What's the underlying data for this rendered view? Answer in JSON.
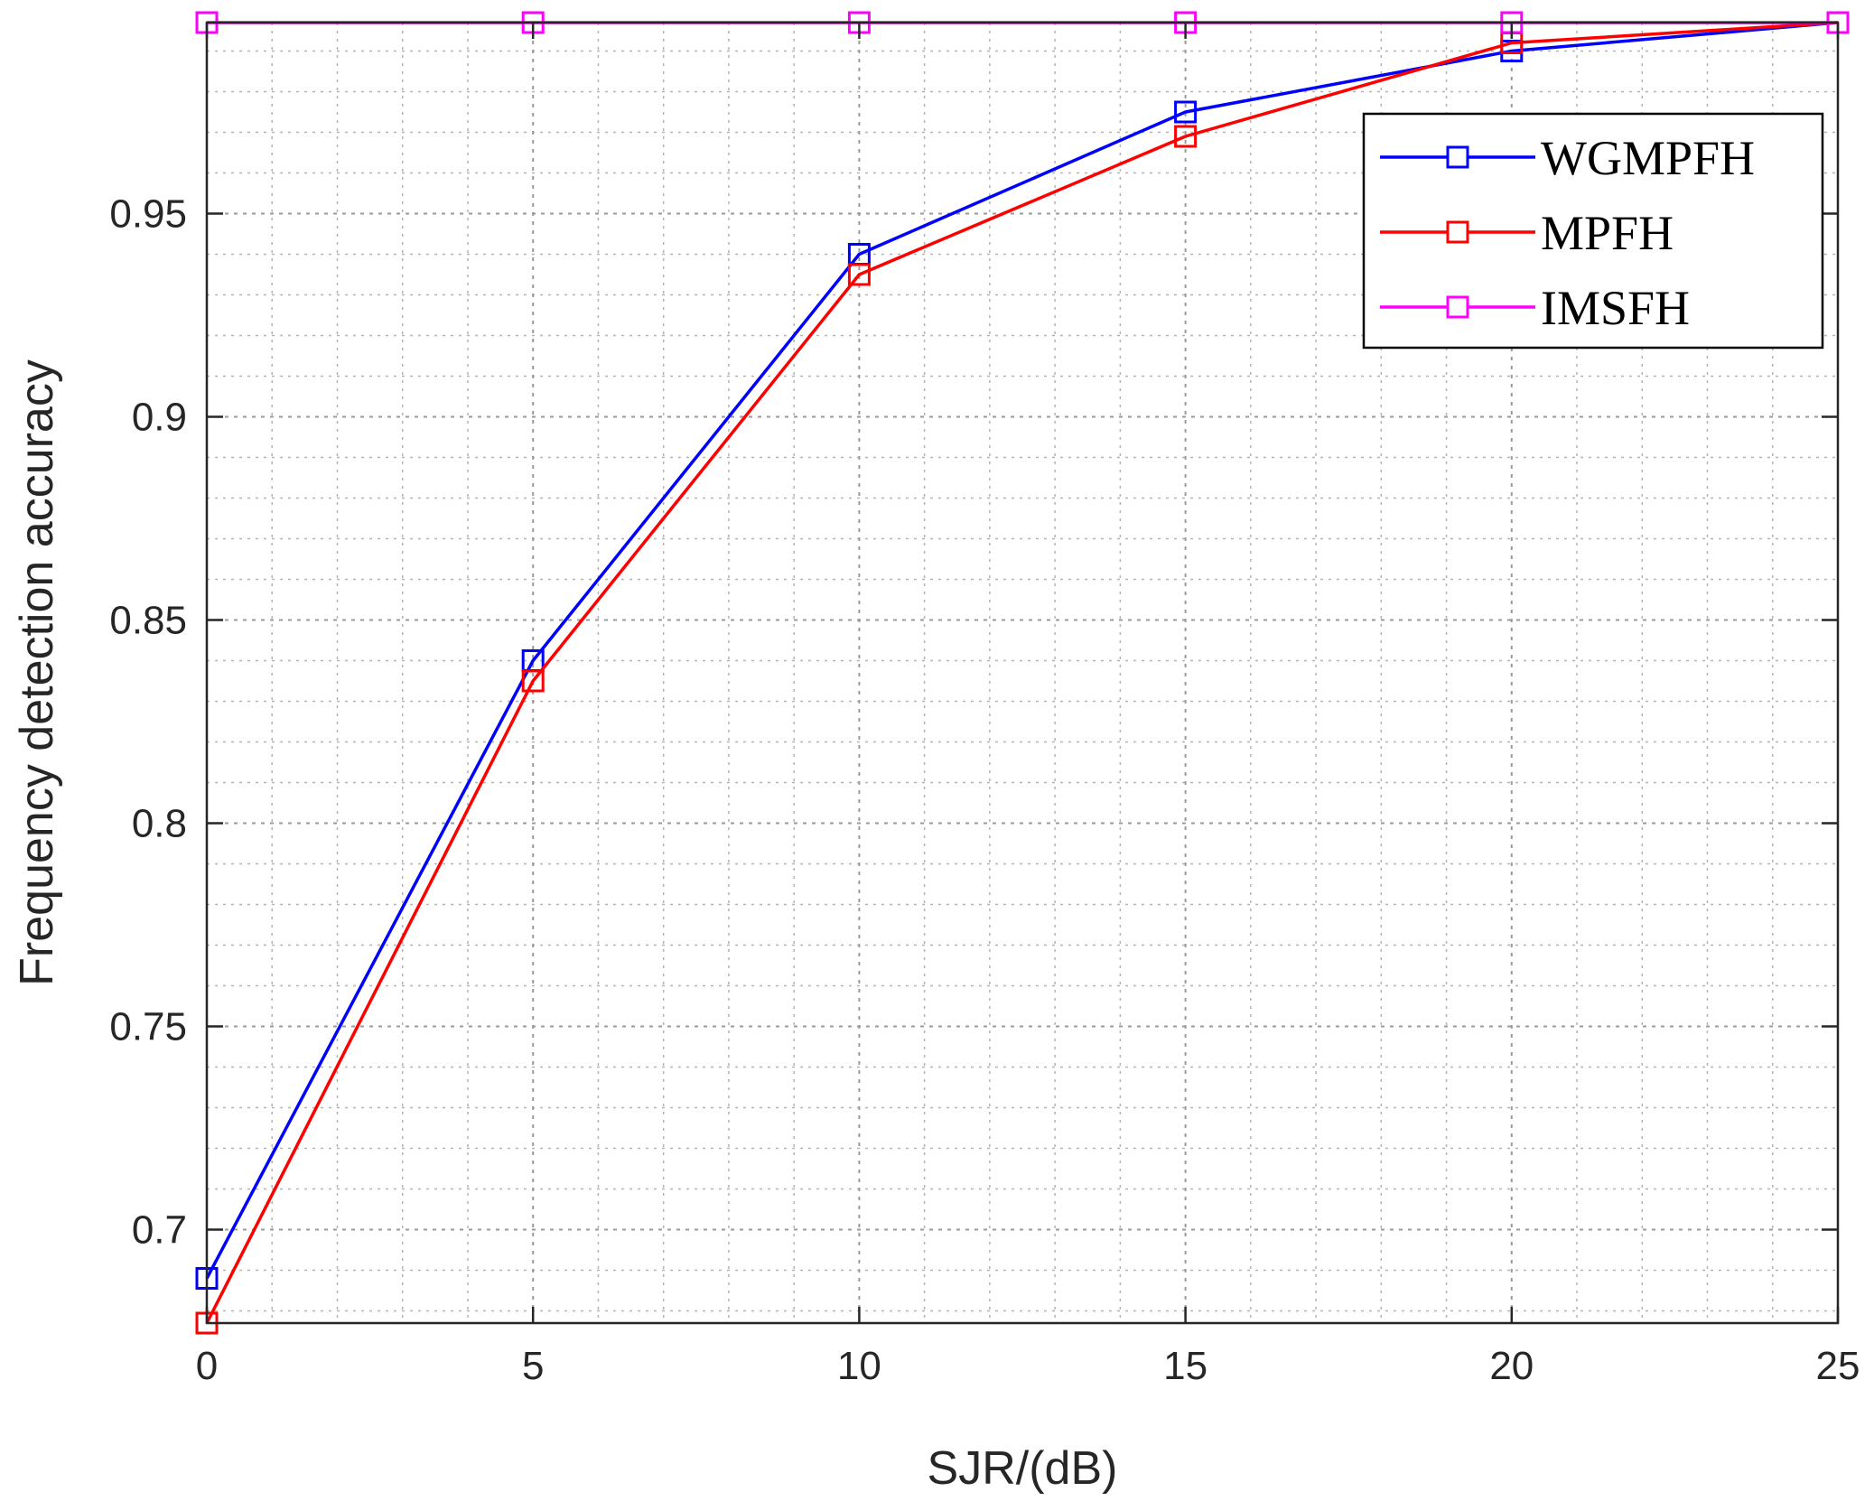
{
  "chart_data": {
    "type": "line",
    "title": "",
    "xlabel": "SJR/(dB)",
    "ylabel": "Frequency detection accuracy",
    "x": [
      0,
      5,
      10,
      15,
      20,
      25
    ],
    "xlim": [
      0,
      25
    ],
    "ylim": [
      0.677,
      0.997
    ],
    "xticks": [
      0,
      5,
      10,
      15,
      20,
      25
    ],
    "yticks": [
      0.7,
      0.75,
      0.8,
      0.85,
      0.9,
      0.95
    ],
    "xtick_labels": [
      "0",
      "5",
      "10",
      "15",
      "20",
      "25"
    ],
    "ytick_labels": [
      "0.7",
      "0.75",
      "0.8",
      "0.85",
      "0.9",
      "0.95"
    ],
    "grid": true,
    "legend_position": "top-right",
    "series": [
      {
        "name": "WGMPFH",
        "color": "#0000ff",
        "marker": "square",
        "values": [
          0.688,
          0.84,
          0.94,
          0.975,
          0.99,
          0.997
        ]
      },
      {
        "name": "MPFH",
        "color": "#ff0000",
        "marker": "square",
        "values": [
          0.677,
          0.835,
          0.935,
          0.969,
          0.992,
          0.997
        ]
      },
      {
        "name": "IMSFH",
        "color": "#ff00ff",
        "marker": "square",
        "values": [
          0.997,
          0.997,
          0.997,
          0.997,
          0.997,
          0.997
        ]
      }
    ]
  }
}
